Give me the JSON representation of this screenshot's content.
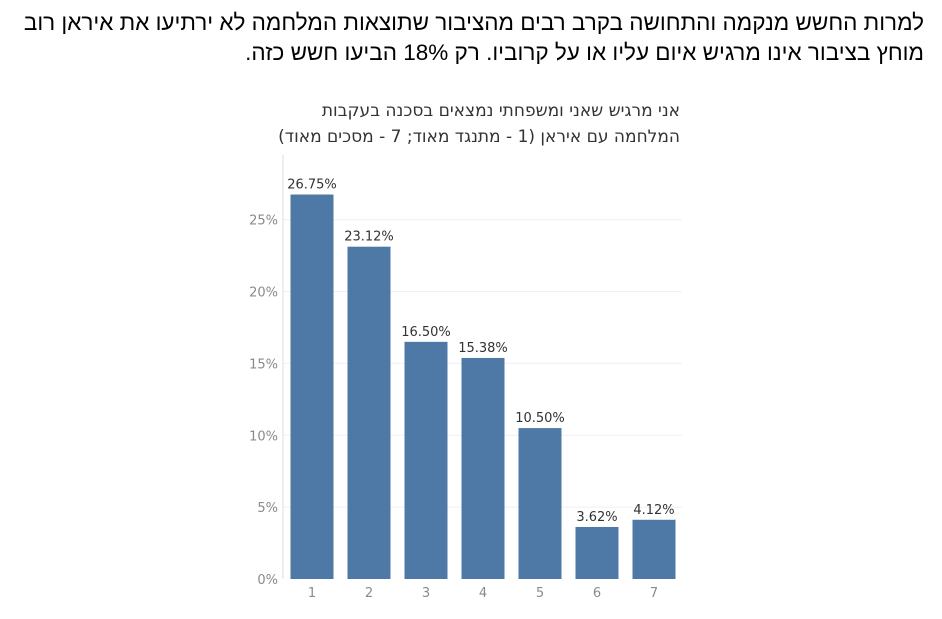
{
  "intro_text": "למרות החשש מנקמה והתחושה בקרב רבים מהציבור שתוצאות המלחמה לא ירתיעו את איראן רוב מוחץ בציבור אינו מרגיש איום עליו או על קרוביו. רק 18% הביעו חשש כזה.",
  "chart_data": {
    "type": "bar",
    "title_line1": "אני מרגיש שאני ומשפחתי נמצאים בסכנה בעקבות",
    "title_line2": "המלחמה עם איראן (1 - מתנגד מאוד; 7 - מסכים מאוד)",
    "categories": [
      "1",
      "2",
      "3",
      "4",
      "5",
      "6",
      "7"
    ],
    "values": [
      26.75,
      23.12,
      16.5,
      15.38,
      10.5,
      3.62,
      4.12
    ],
    "data_labels": [
      "26.75%",
      "23.12%",
      "16.50%",
      "15.38%",
      "10.50%",
      "3.62%",
      "4.12%"
    ],
    "yticks": [
      0,
      5,
      10,
      15,
      20,
      25
    ],
    "ytick_labels": [
      "0%",
      "5%",
      "10%",
      "15%",
      "20%",
      "25%"
    ],
    "ylim": [
      0,
      29.5
    ],
    "xlabel": "",
    "ylabel": "",
    "grid": true,
    "bar_color": "#4e79a7",
    "grid_color": "#f0f0f0",
    "axis_color": "#dddddd"
  }
}
